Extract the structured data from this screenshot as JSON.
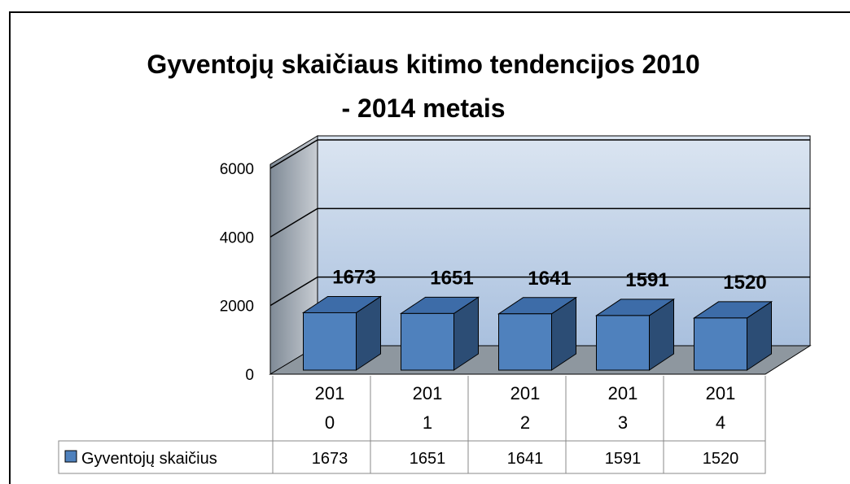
{
  "chart_data": {
    "type": "bar3d",
    "title": "Gyventojų skaičiaus kitimo tendencijos 2010 - 2014 metais",
    "categories": [
      "2010",
      "2011",
      "2012",
      "2013",
      "2014"
    ],
    "series": [
      {
        "name": "Gyventojų skaičius",
        "color": "#4f81bd",
        "values": [
          1673,
          1651,
          1641,
          1591,
          1520
        ]
      }
    ],
    "ylim": [
      0,
      6000
    ],
    "yticks": [
      0,
      2000,
      4000,
      6000
    ],
    "grid": true
  }
}
